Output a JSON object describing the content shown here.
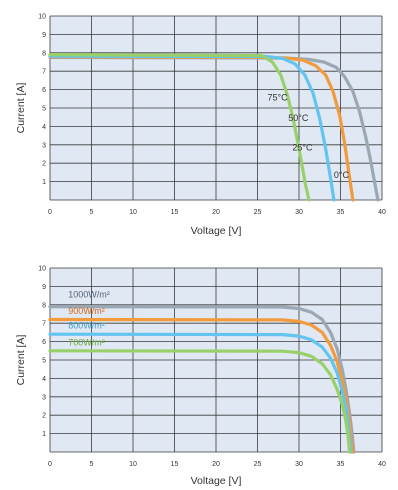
{
  "colors": {
    "plot_bg": "#dfe8f3",
    "grid": "#3a3a3a",
    "line_0C": "#9aa8b4",
    "line_25C": "#f29b3c",
    "line_50C": "#63c4ef",
    "line_75C": "#9ad06a",
    "line_1000": "#9aa8b4",
    "line_900": "#f29b3c",
    "line_800": "#63c4ef",
    "line_700": "#9ad06a",
    "label_1000": "#556677",
    "label_900": "#d2691e",
    "label_800": "#3a9fd0",
    "label_700": "#6aa83a"
  },
  "chart_data": [
    {
      "type": "line",
      "xlabel": "Voltage [V]",
      "ylabel": "Current [A]",
      "xlim": [
        0,
        40
      ],
      "ylim": [
        0,
        10
      ],
      "xticks": [
        "0",
        "5",
        "10",
        "15",
        "20",
        "25",
        "30",
        "35",
        "40"
      ],
      "yticks": [
        "1",
        "2",
        "3",
        "4",
        "5",
        "6",
        "7",
        "8",
        "9",
        "10"
      ],
      "grid": true,
      "series": [
        {
          "name": "0°C",
          "color_key": "line_0C",
          "x": [
            0,
            26.5,
            29,
            31,
            33,
            34.5,
            35.5,
            36.5,
            37.3,
            38,
            38.6,
            39.1,
            39.5
          ],
          "y": [
            7.75,
            7.72,
            7.7,
            7.65,
            7.5,
            7.2,
            6.7,
            5.9,
            4.8,
            3.5,
            2.2,
            1.0,
            0
          ]
        },
        {
          "name": "25°C",
          "color_key": "line_25C",
          "x": [
            0,
            26,
            28.5,
            30.5,
            32,
            33.2,
            34.1,
            34.9,
            35.5,
            36,
            36.5
          ],
          "y": [
            7.78,
            7.75,
            7.72,
            7.6,
            7.3,
            6.8,
            5.9,
            4.6,
            3.1,
            1.5,
            0
          ]
        },
        {
          "name": "50°C",
          "color_key": "line_50C",
          "x": [
            0,
            26,
            28,
            29.5,
            30.7,
            31.7,
            32.5,
            33.2,
            33.8,
            34.2
          ],
          "y": [
            7.82,
            7.8,
            7.7,
            7.4,
            6.8,
            5.8,
            4.4,
            2.8,
            1.2,
            0
          ]
        },
        {
          "name": "75°C",
          "color_key": "line_75C",
          "x": [
            0,
            25.5,
            26.8,
            27.8,
            28.6,
            29.3,
            29.9,
            30.4,
            30.8,
            31.2
          ],
          "y": [
            7.9,
            7.85,
            7.5,
            6.8,
            5.7,
            4.4,
            3.0,
            1.8,
            0.8,
            0
          ]
        }
      ]
    },
    {
      "type": "line",
      "xlabel": "Voltage [V]",
      "ylabel": "Current [A]",
      "xlim": [
        0,
        40
      ],
      "ylim": [
        0,
        10
      ],
      "xticks": [
        "0",
        "5",
        "10",
        "15",
        "20",
        "25",
        "30",
        "35",
        "40"
      ],
      "yticks": [
        "1",
        "2",
        "3",
        "4",
        "5",
        "6",
        "7",
        "8",
        "9",
        "10"
      ],
      "grid": true,
      "series": [
        {
          "name": "1000W/m²",
          "color_key": "line_1000",
          "label_color_key": "label_1000",
          "x": [
            0,
            28,
            30,
            31.5,
            32.8,
            33.8,
            34.6,
            35.2,
            35.7,
            36.1,
            36.4,
            36.6
          ],
          "y": [
            7.9,
            7.88,
            7.8,
            7.6,
            7.2,
            6.5,
            5.6,
            4.5,
            3.3,
            2.1,
            1.0,
            0
          ]
        },
        {
          "name": "900W/m²",
          "color_key": "line_900",
          "label_color_key": "label_900",
          "x": [
            0,
            28,
            30,
            31.5,
            32.8,
            33.8,
            34.6,
            35.2,
            35.7,
            36.1,
            36.4
          ],
          "y": [
            7.2,
            7.18,
            7.1,
            6.9,
            6.5,
            5.8,
            4.9,
            3.9,
            2.8,
            1.6,
            0
          ]
        },
        {
          "name": "800W/m²",
          "color_key": "line_800",
          "label_color_key": "label_800",
          "x": [
            0,
            28,
            30,
            31.5,
            32.8,
            33.8,
            34.6,
            35.2,
            35.7,
            36.0,
            36.2
          ],
          "y": [
            6.4,
            6.38,
            6.3,
            6.1,
            5.7,
            5.1,
            4.3,
            3.3,
            2.3,
            1.2,
            0
          ]
        },
        {
          "name": "700W/m²",
          "color_key": "line_700",
          "label_color_key": "label_700",
          "x": [
            0,
            28,
            30,
            31.5,
            32.8,
            33.8,
            34.6,
            35.2,
            35.6,
            35.9,
            36.1
          ],
          "y": [
            5.5,
            5.48,
            5.4,
            5.2,
            4.8,
            4.2,
            3.4,
            2.6,
            1.8,
            0.9,
            0
          ]
        }
      ]
    }
  ]
}
